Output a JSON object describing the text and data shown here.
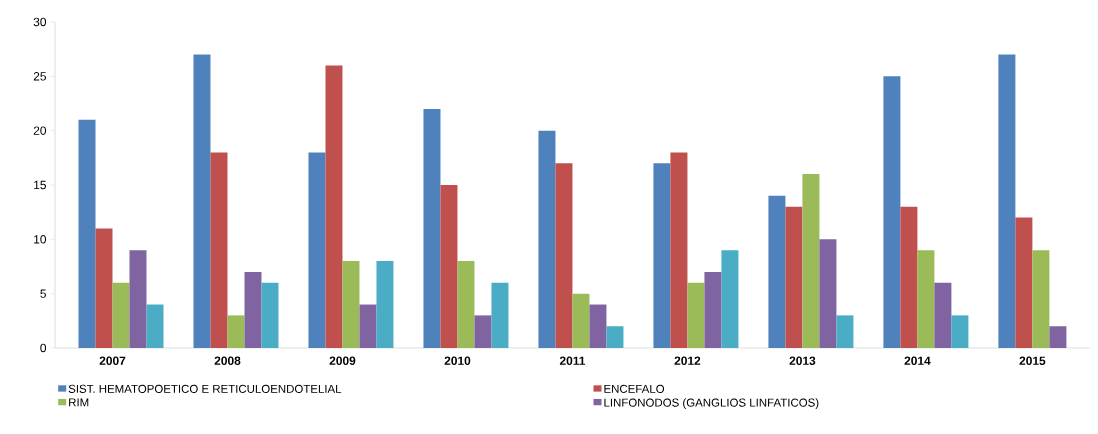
{
  "chart_data": {
    "type": "bar",
    "categories": [
      "2007",
      "2008",
      "2009",
      "2010",
      "2011",
      "2012",
      "2013",
      "2014",
      "2015"
    ],
    "series": [
      {
        "name": "SIST. HEMATOPOETICO E RETICULOENDOTELIAL",
        "color": "#4f81bd",
        "values": [
          21,
          27,
          18,
          22,
          20,
          17,
          14,
          25,
          27
        ]
      },
      {
        "name": "ENCEFALO",
        "color": "#c0504d",
        "values": [
          11,
          18,
          26,
          15,
          17,
          18,
          13,
          13,
          12
        ]
      },
      {
        "name": "RIM",
        "color": "#9bbb59",
        "values": [
          6,
          3,
          8,
          8,
          5,
          6,
          16,
          9,
          9
        ]
      },
      {
        "name": "LINFONODOS (GANGLIOS LINFATICOS)",
        "color": "#8064a2",
        "values": [
          9,
          7,
          4,
          3,
          4,
          7,
          10,
          6,
          2
        ]
      },
      {
        "color": "#4bacc6",
        "values": [
          4,
          6,
          8,
          6,
          2,
          9,
          3,
          3,
          null
        ]
      }
    ],
    "ylim": [
      0,
      30
    ],
    "yticks": [
      0,
      5,
      10,
      15,
      20,
      25,
      30
    ],
    "legend": "bottom"
  }
}
